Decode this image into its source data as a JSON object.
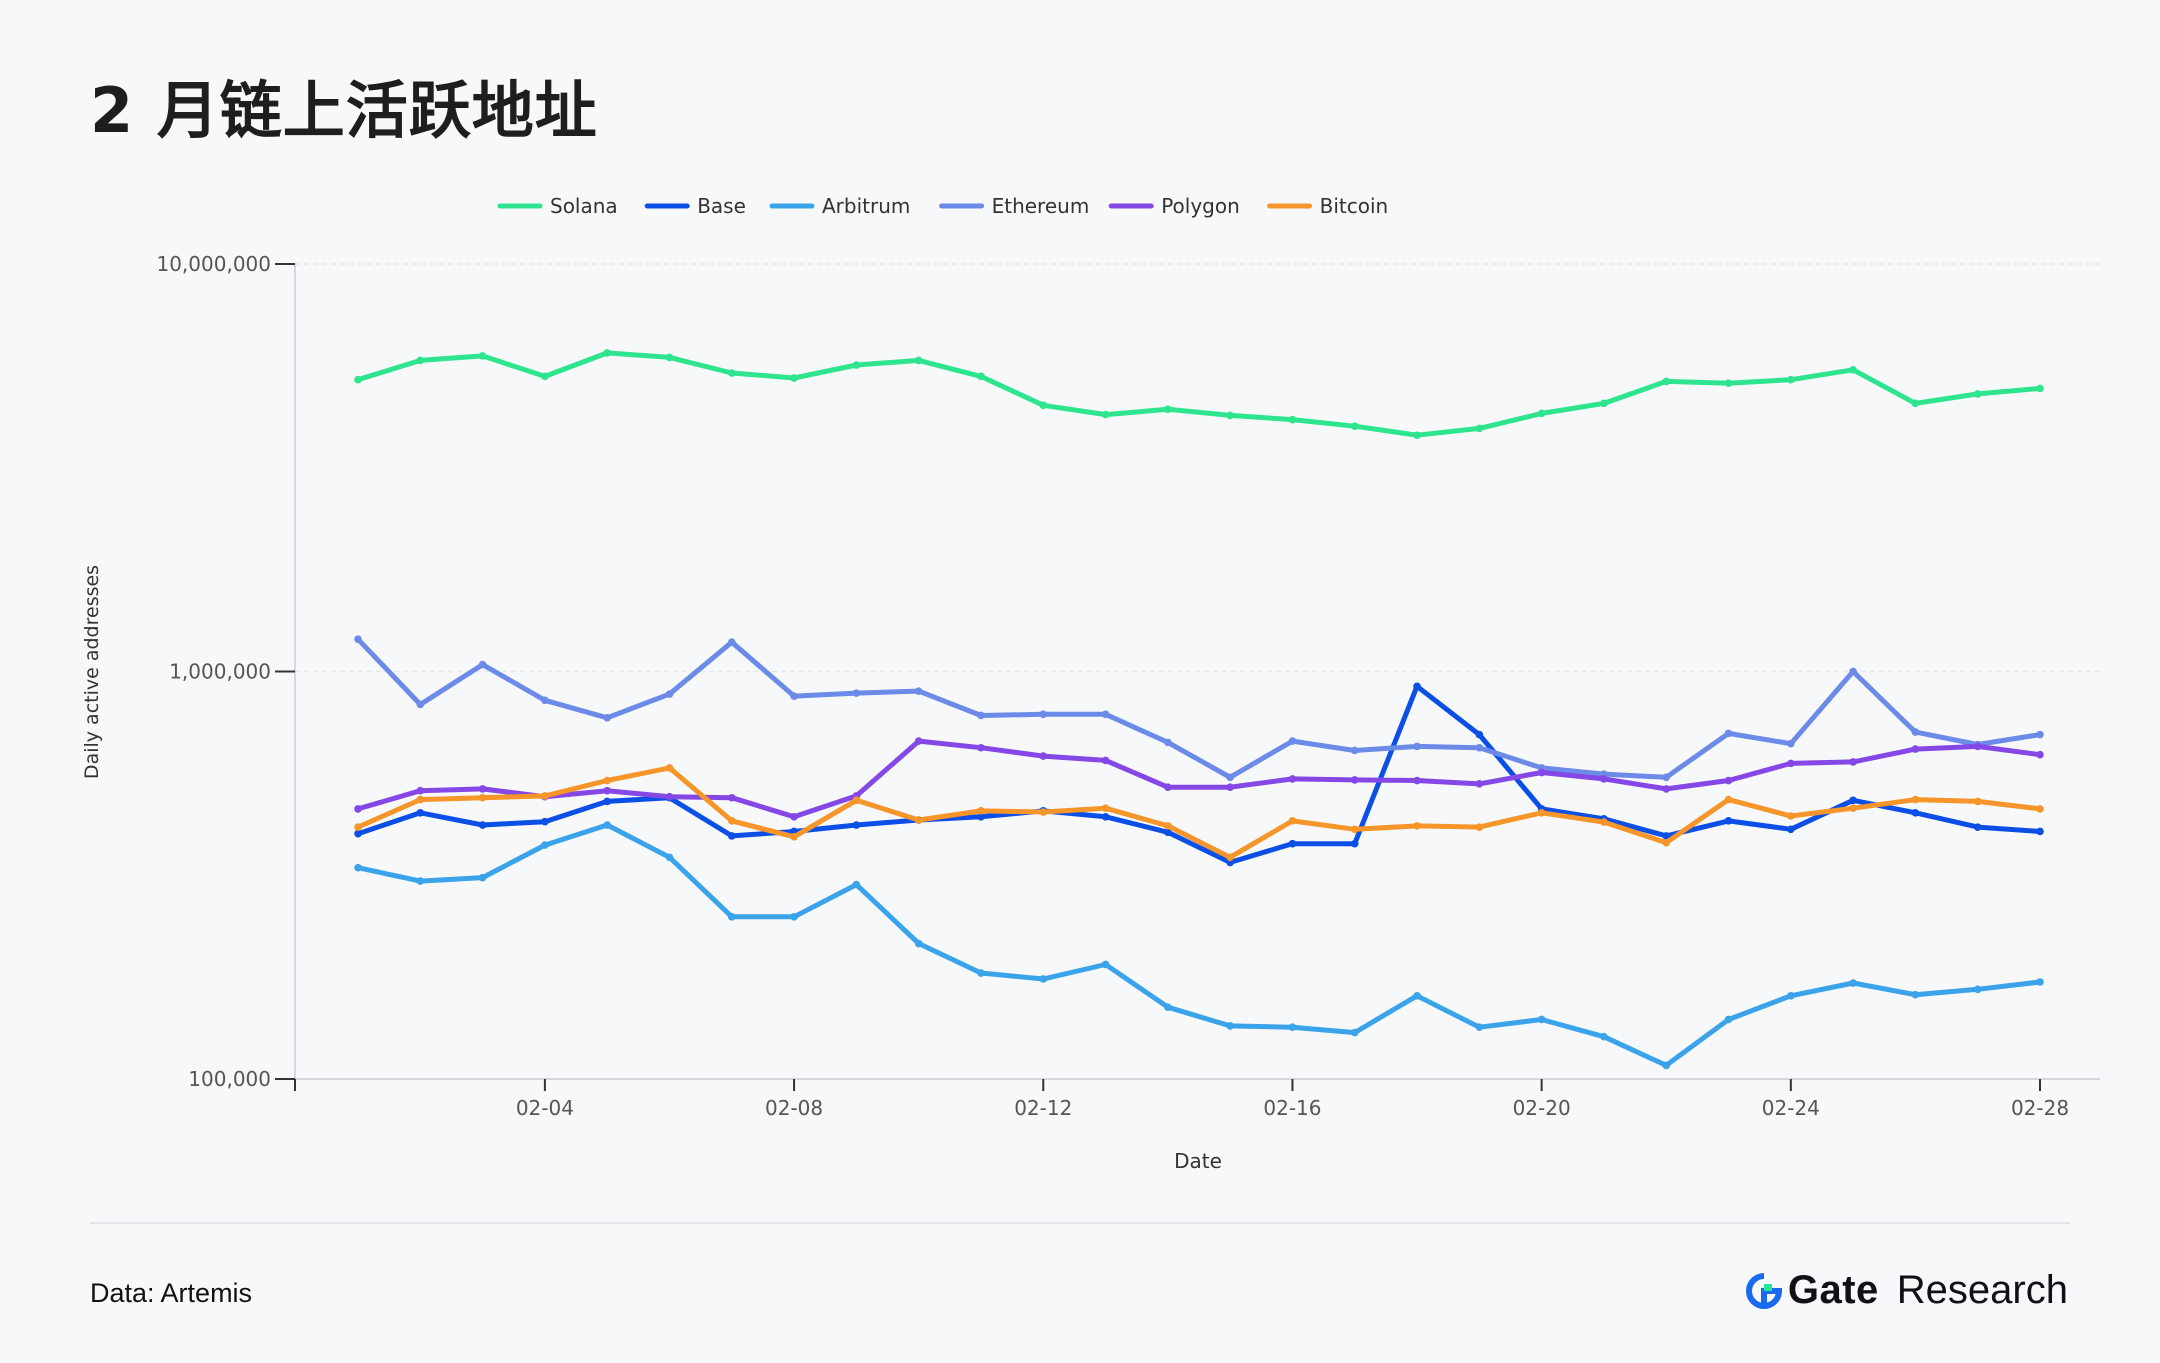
{
  "page": {
    "title": "2 月链上活跃地址",
    "source": "Data: Artemis",
    "brand_name": "Gate",
    "brand_suffix": "Research",
    "brand_logo_icon": "gate-logo-icon"
  },
  "chart_data": {
    "type": "line",
    "title": "2 月链上活跃地址",
    "xlabel": "Date",
    "ylabel": "Daily active addresses",
    "yscale": "log",
    "ylim": [
      100000,
      10000000
    ],
    "ytick_values": [
      100000,
      1000000,
      10000000
    ],
    "ytick_labels": [
      "100,000",
      "1,000,000",
      "10,000,000"
    ],
    "xtick_labels": [
      "02-04",
      "02-08",
      "02-12",
      "02-16",
      "02-20",
      "02-24",
      "02-28"
    ],
    "xtick_days": [
      4,
      8,
      12,
      16,
      20,
      24,
      28
    ],
    "x_days": [
      1,
      2,
      3,
      4,
      5,
      6,
      7,
      8,
      9,
      10,
      11,
      12,
      13,
      14,
      15,
      16,
      17,
      18,
      19,
      20,
      21,
      22,
      23,
      24,
      25,
      26,
      27,
      28
    ],
    "grid": "horizontal",
    "legend": "top-center",
    "series": [
      {
        "name": "Solana",
        "color": "#2ee58e",
        "values": [
          5200000,
          5800000,
          5950000,
          5300000,
          6050000,
          5900000,
          5400000,
          5250000,
          5650000,
          5800000,
          5300000,
          4500000,
          4270000,
          4400000,
          4250000,
          4150000,
          4000000,
          3800000,
          3950000,
          4300000,
          4550000,
          5150000,
          5100000,
          5200000,
          5500000,
          4550000,
          4800000,
          4950000
        ]
      },
      {
        "name": "Base",
        "color": "#0b4fe6",
        "values": [
          400000,
          450000,
          420000,
          428000,
          480000,
          490000,
          395000,
          405000,
          420000,
          432000,
          440000,
          455000,
          440000,
          403000,
          340000,
          378000,
          378000,
          920000,
          700000,
          460000,
          435000,
          395000,
          430000,
          410000,
          483000,
          450000,
          415000,
          405000
        ]
      },
      {
        "name": "Arbitrum",
        "color": "#3aa3ea",
        "values": [
          330000,
          306000,
          312000,
          375000,
          420000,
          350000,
          250000,
          250000,
          300000,
          215000,
          182000,
          176000,
          191000,
          150000,
          135000,
          134000,
          130000,
          160000,
          134000,
          140000,
          127000,
          108000,
          140000,
          160000,
          172000,
          161000,
          166000,
          173000
        ]
      },
      {
        "name": "Ethereum",
        "color": "#6c8ae8",
        "values": [
          1200000,
          830000,
          1040000,
          850000,
          770000,
          880000,
          1180000,
          870000,
          885000,
          895000,
          780000,
          785000,
          785000,
          670000,
          550000,
          675000,
          640000,
          655000,
          650000,
          580000,
          560000,
          550000,
          705000,
          665000,
          1000000,
          710000,
          662000,
          700000
        ]
      },
      {
        "name": "Polygon",
        "color": "#8547e5",
        "values": [
          460000,
          510000,
          515000,
          493000,
          510000,
          493000,
          490000,
          440000,
          495000,
          675000,
          650000,
          620000,
          605000,
          520000,
          520000,
          545000,
          542000,
          540000,
          530000,
          565000,
          545000,
          515000,
          540000,
          595000,
          600000,
          645000,
          655000,
          625000
        ]
      },
      {
        "name": "Bitcoin",
        "color": "#f5952a",
        "values": [
          415000,
          485000,
          490000,
          495000,
          540000,
          580000,
          430000,
          393000,
          483000,
          432000,
          455000,
          452000,
          462000,
          418000,
          350000,
          430000,
          410000,
          418000,
          415000,
          450000,
          427000,
          380000,
          485000,
          442000,
          462000,
          485000,
          480000,
          460000
        ]
      }
    ]
  }
}
